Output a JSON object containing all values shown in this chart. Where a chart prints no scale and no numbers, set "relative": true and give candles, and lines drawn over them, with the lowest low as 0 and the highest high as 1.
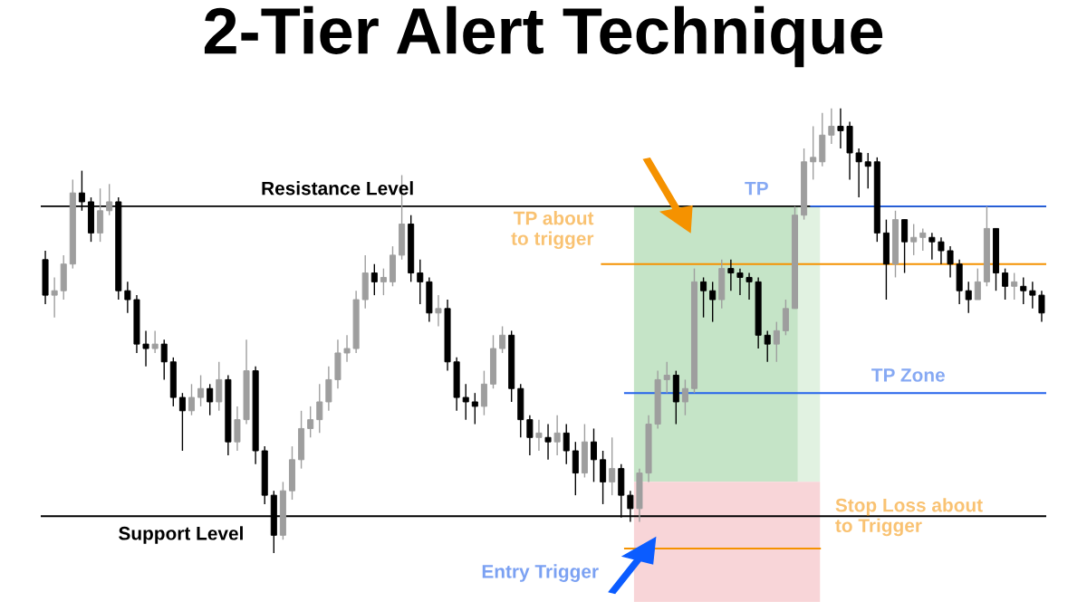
{
  "chart_data": {
    "type": "candlestick",
    "relative": true,
    "title": "2-Tier Alert Technique",
    "colors": [
      "#000000",
      "#9e9e9e",
      "#9e9e9e",
      "#9e9e9e",
      "#000000",
      "#000000",
      "#9e9e9e",
      "#9e9e9e",
      "#000000",
      "#000000",
      "#000000",
      "#000000",
      "#9e9e9e",
      "#000000",
      "#000000",
      "#000000",
      "#9e9e9e",
      "#9e9e9e",
      "#000000",
      "#9e9e9e",
      "#000000",
      "#9e9e9e",
      "#9e9e9e",
      "#000000",
      "#000000",
      "#000000",
      "#9e9e9e",
      "#9e9e9e",
      "#9e9e9e",
      "#9e9e9e",
      "#9e9e9e",
      "#9e9e9e",
      "#9e9e9e",
      "#9e9e9e",
      "#9e9e9e",
      "#9e9e9e",
      "#000000",
      "#9e9e9e",
      "#9e9e9e",
      "#9e9e9e",
      "#000000",
      "#000000",
      "#000000",
      "#9e9e9e",
      "#000000",
      "#000000",
      "#000000",
      "#000000",
      "#9e9e9e",
      "#9e9e9e",
      "#9e9e9e",
      "#000000",
      "#000000",
      "#000000",
      "#9e9e9e",
      "#000000",
      "#9e9e9e",
      "#000000",
      "#000000",
      "#9e9e9e",
      "#000000",
      "#000000",
      "#9e9e9e",
      "#000000",
      "#000000",
      "#9e9e9e",
      "#9e9e9e",
      "#9e9e9e",
      "#9e9e9e",
      "#000000",
      "#9e9e9e",
      "#9e9e9e",
      "#000000",
      "#000000",
      "#9e9e9e",
      "#000000",
      "#000000",
      "#000000",
      "#000000",
      "#000000",
      "#9e9e9e",
      "#9e9e9e",
      "#9e9e9e",
      "#9e9e9e",
      "#9e9e9e",
      "#9e9e9e",
      "#9e9e9e",
      "#000000",
      "#000000",
      "#000000",
      "#000000",
      "#000000",
      "#000000",
      "#9e9e9e",
      "#000000",
      "#9e9e9e",
      "#9e9e9e",
      "#000000",
      "#000000",
      "#000000",
      "#000000",
      "#000000",
      "#9e9e9e",
      "#9e9e9e",
      "#000000",
      "#000000",
      "#9e9e9e",
      "#000000",
      "#000000",
      "#000000"
    ],
    "categories": [
      null,
      null,
      null,
      null,
      null,
      null,
      null,
      null,
      null,
      null,
      null,
      null,
      null,
      null,
      null,
      null,
      null,
      null,
      null,
      null,
      null,
      null,
      null,
      null,
      null,
      null,
      null,
      null,
      null,
      null,
      null,
      null,
      null,
      null,
      null,
      null,
      null,
      null,
      null,
      null,
      null,
      null,
      null,
      null,
      null,
      null,
      null,
      null,
      null,
      null,
      null,
      null,
      null,
      null,
      null,
      null,
      null,
      null,
      null,
      null,
      null,
      null,
      null,
      null,
      null,
      null,
      null,
      null,
      null,
      null,
      null,
      null,
      null,
      null,
      null,
      null,
      null,
      null,
      null,
      null,
      null,
      null,
      null,
      null,
      null,
      null,
      null,
      null,
      null,
      null,
      null,
      null,
      null,
      null,
      null,
      null,
      null,
      null,
      null,
      null,
      null,
      null,
      null,
      null,
      null,
      null,
      null,
      null,
      null,
      null
    ],
    "ohlc": [
      [
        0.66,
        0.68,
        0.56,
        0.58
      ],
      [
        0.58,
        0.62,
        0.53,
        0.59
      ],
      [
        0.59,
        0.67,
        0.57,
        0.65
      ],
      [
        0.65,
        0.84,
        0.64,
        0.81
      ],
      [
        0.81,
        0.86,
        0.77,
        0.79
      ],
      [
        0.79,
        0.8,
        0.7,
        0.72
      ],
      [
        0.72,
        0.82,
        0.7,
        0.77
      ],
      [
        0.77,
        0.83,
        0.76,
        0.79
      ],
      [
        0.79,
        0.8,
        0.57,
        0.59
      ],
      [
        0.59,
        0.61,
        0.54,
        0.57
      ],
      [
        0.57,
        0.58,
        0.45,
        0.47
      ],
      [
        0.47,
        0.5,
        0.42,
        0.46
      ],
      [
        0.46,
        0.5,
        0.45,
        0.47
      ],
      [
        0.47,
        0.48,
        0.39,
        0.43
      ],
      [
        0.43,
        0.44,
        0.33,
        0.35
      ],
      [
        0.35,
        0.36,
        0.23,
        0.32
      ],
      [
        0.32,
        0.38,
        0.31,
        0.35
      ],
      [
        0.35,
        0.4,
        0.33,
        0.37
      ],
      [
        0.37,
        0.38,
        0.31,
        0.34
      ],
      [
        0.34,
        0.43,
        0.32,
        0.39
      ],
      [
        0.39,
        0.4,
        0.22,
        0.25
      ],
      [
        0.25,
        0.33,
        0.23,
        0.3
      ],
      [
        0.3,
        0.48,
        0.29,
        0.41
      ],
      [
        0.41,
        0.42,
        0.2,
        0.23
      ],
      [
        0.23,
        0.24,
        0.11,
        0.13
      ],
      [
        0.13,
        0.14,
        0.0,
        0.04
      ],
      [
        0.04,
        0.16,
        0.03,
        0.14
      ],
      [
        0.14,
        0.24,
        0.12,
        0.21
      ],
      [
        0.21,
        0.32,
        0.19,
        0.28
      ],
      [
        0.28,
        0.33,
        0.26,
        0.3
      ],
      [
        0.3,
        0.38,
        0.27,
        0.34
      ],
      [
        0.34,
        0.42,
        0.32,
        0.39
      ],
      [
        0.39,
        0.48,
        0.37,
        0.45
      ],
      [
        0.45,
        0.49,
        0.43,
        0.46
      ],
      [
        0.46,
        0.59,
        0.45,
        0.57
      ],
      [
        0.57,
        0.67,
        0.55,
        0.63
      ],
      [
        0.63,
        0.65,
        0.58,
        0.61
      ],
      [
        0.61,
        0.64,
        0.58,
        0.62
      ],
      [
        0.61,
        0.69,
        0.6,
        0.67
      ],
      [
        0.67,
        0.85,
        0.66,
        0.74
      ],
      [
        0.74,
        0.76,
        0.61,
        0.63
      ],
      [
        0.63,
        0.66,
        0.56,
        0.61
      ],
      [
        0.61,
        0.62,
        0.52,
        0.54
      ],
      [
        0.54,
        0.58,
        0.51,
        0.55
      ],
      [
        0.55,
        0.57,
        0.41,
        0.43
      ],
      [
        0.43,
        0.44,
        0.32,
        0.35
      ],
      [
        0.35,
        0.38,
        0.3,
        0.34
      ],
      [
        0.34,
        0.36,
        0.29,
        0.33
      ],
      [
        0.33,
        0.41,
        0.31,
        0.38
      ],
      [
        0.38,
        0.49,
        0.37,
        0.46
      ],
      [
        0.46,
        0.51,
        0.45,
        0.49
      ],
      [
        0.49,
        0.5,
        0.34,
        0.37
      ],
      [
        0.37,
        0.38,
        0.26,
        0.3
      ],
      [
        0.3,
        0.31,
        0.22,
        0.26
      ],
      [
        0.26,
        0.3,
        0.23,
        0.27
      ],
      [
        0.26,
        0.29,
        0.21,
        0.25
      ],
      [
        0.25,
        0.31,
        0.22,
        0.27
      ],
      [
        0.27,
        0.29,
        0.2,
        0.23
      ],
      [
        0.23,
        0.25,
        0.13,
        0.18
      ],
      [
        0.18,
        0.29,
        0.17,
        0.25
      ],
      [
        0.25,
        0.28,
        0.16,
        0.21
      ],
      [
        0.21,
        0.23,
        0.11,
        0.16
      ],
      [
        0.16,
        0.26,
        0.13,
        0.19
      ],
      [
        0.19,
        0.2,
        0.08,
        0.13
      ],
      [
        0.13,
        0.14,
        0.07,
        0.1
      ],
      [
        0.1,
        0.19,
        0.07,
        0.18
      ],
      [
        0.18,
        0.31,
        0.16,
        0.29
      ],
      [
        0.29,
        0.41,
        0.28,
        0.39
      ],
      [
        0.39,
        0.43,
        0.36,
        0.4
      ],
      [
        0.4,
        0.41,
        0.29,
        0.34
      ],
      [
        0.34,
        0.39,
        0.31,
        0.37
      ],
      [
        0.37,
        0.64,
        0.36,
        0.61
      ],
      [
        0.61,
        0.62,
        0.53,
        0.59
      ],
      [
        0.59,
        0.61,
        0.52,
        0.57
      ],
      [
        0.57,
        0.66,
        0.55,
        0.64
      ],
      [
        0.64,
        0.66,
        0.59,
        0.63
      ],
      [
        0.63,
        0.64,
        0.58,
        0.62
      ],
      [
        0.62,
        0.63,
        0.57,
        0.61
      ],
      [
        0.61,
        0.62,
        0.46,
        0.49
      ],
      [
        0.49,
        0.5,
        0.43,
        0.47
      ],
      [
        0.47,
        0.52,
        0.43,
        0.5
      ],
      [
        0.5,
        0.57,
        0.49,
        0.55
      ],
      [
        0.55,
        0.78,
        0.55,
        0.76
      ],
      [
        0.76,
        0.91,
        0.75,
        0.88
      ],
      [
        0.88,
        0.96,
        0.84,
        0.89
      ],
      [
        0.88,
        0.99,
        0.87,
        0.94
      ],
      [
        0.94,
        1.0,
        0.92,
        0.96
      ],
      [
        0.96,
        1.0,
        0.91,
        0.95
      ],
      [
        0.96,
        0.97,
        0.84,
        0.9
      ],
      [
        0.9,
        0.91,
        0.8,
        0.88
      ],
      [
        0.88,
        0.9,
        0.82,
        0.87
      ],
      [
        0.88,
        0.89,
        0.7,
        0.72
      ],
      [
        0.72,
        0.75,
        0.57,
        0.65
      ],
      [
        0.65,
        0.77,
        0.62,
        0.75
      ],
      [
        0.75,
        0.75,
        0.63,
        0.7
      ],
      [
        0.7,
        0.74,
        0.67,
        0.71
      ],
      [
        0.71,
        0.73,
        0.68,
        0.72
      ],
      [
        0.71,
        0.72,
        0.66,
        0.7
      ],
      [
        0.7,
        0.71,
        0.65,
        0.68
      ],
      [
        0.68,
        0.69,
        0.62,
        0.65
      ],
      [
        0.65,
        0.66,
        0.56,
        0.59
      ],
      [
        0.59,
        0.61,
        0.54,
        0.57
      ],
      [
        0.57,
        0.64,
        0.57,
        0.61
      ],
      [
        0.61,
        0.78,
        0.6,
        0.73
      ],
      [
        0.73,
        0.73,
        0.59,
        0.63
      ],
      [
        0.63,
        0.64,
        0.57,
        0.6
      ],
      [
        0.6,
        0.63,
        0.57,
        0.61
      ],
      [
        0.6,
        0.62,
        0.56,
        0.59
      ],
      [
        0.59,
        0.61,
        0.55,
        0.58
      ],
      [
        0.58,
        0.59,
        0.52,
        0.54
      ]
    ],
    "ref_lines": [
      {
        "axis": "y",
        "value": 0.78,
        "color": "#000000",
        "label": "Resistance Level"
      },
      {
        "axis": "y",
        "value": 0.083,
        "color": "#000000",
        "label": "Support Level"
      },
      {
        "axis": "y",
        "value": 0.78,
        "color": "#2563eb",
        "label": "TP"
      },
      {
        "axis": "y",
        "value": 0.65,
        "color": "#f59200",
        "label": "TP about\nto trigger"
      },
      {
        "axis": "y",
        "value": 0.36,
        "color": "#2563eb",
        "label": "TP Zone"
      },
      {
        "axis": "y",
        "value": 0.01,
        "color": "#f59200",
        "label": "Stop Loss about\nto Trigger"
      }
    ],
    "annotations": [
      "Entry Trigger"
    ]
  }
}
